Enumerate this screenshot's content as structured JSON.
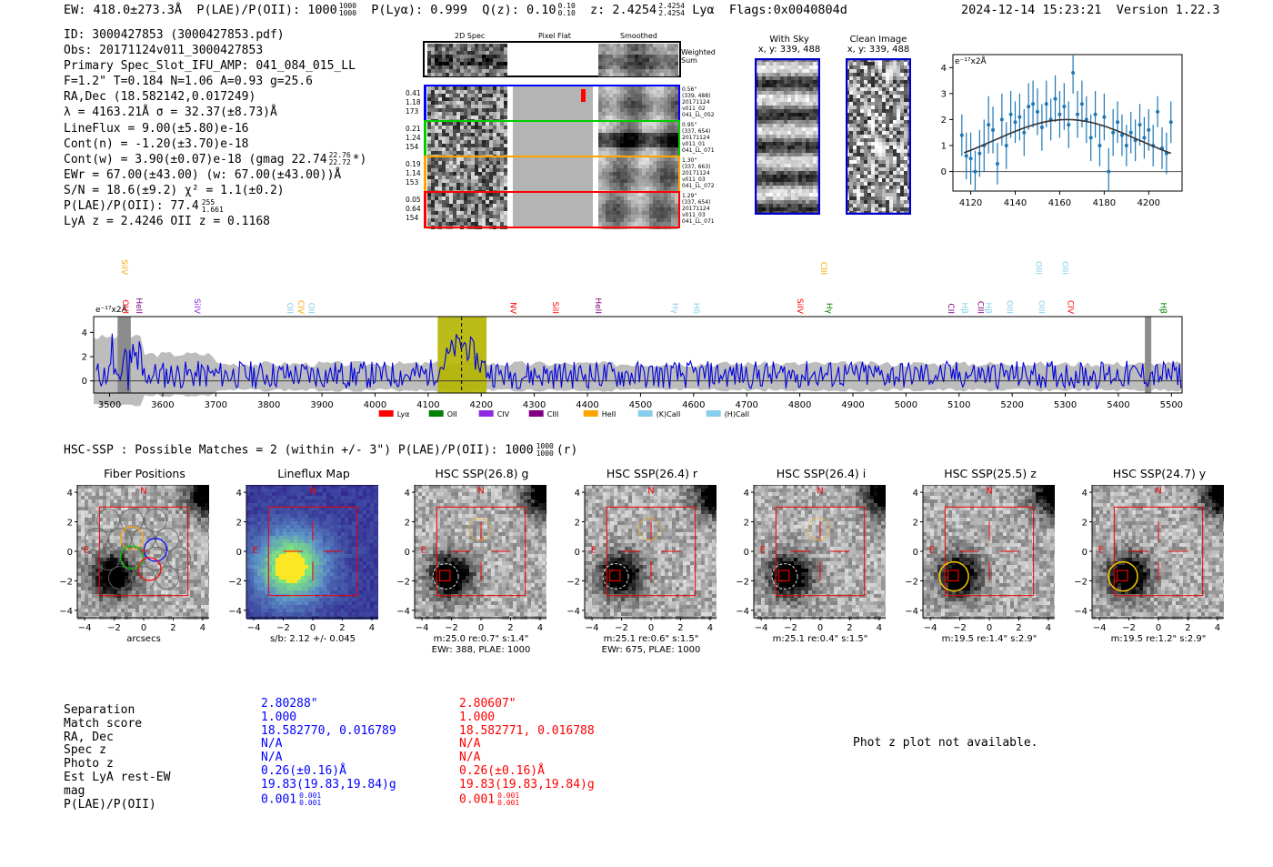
{
  "header": {
    "ew": "EW: 418.0±273.3Å",
    "plae": "P(LAE)/P(OII): 1000",
    "plae_hi": "1000",
    "plae_lo": "1000",
    "plya": "P(Lyα): 0.999",
    "qz": "Q(z): 0.10",
    "qz_hi": "0.10",
    "qz_lo": "0.10",
    "z": "z: 2.4254",
    "z_hi": "2.4254",
    "z_lo": "2.4254",
    "line": "Lyα",
    "flags": "Flags:0x0040804d",
    "timestamp": "2024-12-14 15:23:21",
    "version": "Version 1.22.3"
  },
  "info": {
    "id": "ID: 3000427853 (3000427853.pdf)",
    "obs": "Obs: 20171124v011_3000427853",
    "primary": "Primary Spec_Slot_IFU_AMP: 041_084_015_LL",
    "params": "F=1.2\"  T=0.184  N=1.06  A=0.93  g=25.6",
    "radec": "RA,Dec (18.582142,0.017249)",
    "lambda": "λ = 4163.21Å  σ = 32.37(±8.73)Å",
    "lineflux": "LineFlux = 9.00(±5.80)e-16",
    "contn": "Cont(n) = -1.20(±3.70)e-18",
    "contw": "Cont(w) = 3.90(±0.07)e-18 (gmag 22.74",
    "contw_hi": "22.76",
    "contw_lo": "22.72",
    "contw_end": "*)",
    "ewr": "EWr = 67.00(±43.00) (w: 67.00(±43.00))Å",
    "sn": "S/N = 18.6(±9.2)  χ² = 1.1(±0.2)",
    "plae": "P(LAE)/P(OII): 77.4",
    "plae_hi": "255",
    "plae_lo": "1.661",
    "lyaz": "LyA z = 2.4246  OII z = 0.1168"
  },
  "cutouts": {
    "headers": [
      "2D Spec",
      "Pixel Flat",
      "Smoothed"
    ],
    "weighted": "Weighted Sum",
    "rows": [
      {
        "left": [
          "0.41",
          "1.18",
          "173"
        ],
        "right": [
          "0.56\"",
          "(339, 488)",
          "20171124",
          "v011_02",
          "041_LL_052"
        ],
        "color": "#0000ff"
      },
      {
        "left": [
          "0.21",
          "1.24",
          "154"
        ],
        "right": [
          "0.95\"",
          "(337, 654)",
          "20171124",
          "v011_01",
          "041_LL_071"
        ],
        "color": "#00cc00"
      },
      {
        "left": [
          "0.19",
          "1.14",
          "153"
        ],
        "right": [
          "1.30\"",
          "(337, 663)",
          "20171124",
          "v011_03",
          "041_LL_072"
        ],
        "color": "#ffa500"
      },
      {
        "left": [
          "0.05",
          "0.64",
          "154"
        ],
        "right": [
          "1.29\"",
          "(337, 654)",
          "20171124",
          "v011_03",
          "041_LL_071"
        ],
        "color": "#ff0000"
      }
    ]
  },
  "skypanels": {
    "with_sky": "With Sky",
    "clean": "Clean Image",
    "coords": "x, y: 339, 488"
  },
  "chart_data": [
    {
      "type": "scatter",
      "title": "",
      "units_label": "e⁻¹⁷x2Å",
      "xlim": [
        4112,
        4215
      ],
      "ylim": [
        -0.75,
        4.5
      ],
      "xticks": [
        4120,
        4140,
        4160,
        4180,
        4200
      ],
      "yticks": [
        0,
        1,
        2,
        3,
        4
      ],
      "x": [
        4116,
        4118,
        4120,
        4122,
        4124,
        4126,
        4128,
        4130,
        4132,
        4134,
        4136,
        4138,
        4140,
        4142,
        4144,
        4146,
        4148,
        4150,
        4152,
        4154,
        4156,
        4158,
        4160,
        4162,
        4164,
        4166,
        4168,
        4170,
        4172,
        4174,
        4176,
        4178,
        4180,
        4182,
        4184,
        4186,
        4188,
        4190,
        4192,
        4194,
        4196,
        4198,
        4200,
        4202,
        4204,
        4206,
        4208,
        4210
      ],
      "y": [
        1.4,
        0.6,
        0.5,
        0.0,
        0.7,
        1.0,
        1.8,
        1.6,
        0.3,
        2.0,
        1.0,
        2.2,
        1.9,
        2.1,
        1.5,
        2.5,
        2.6,
        2.3,
        1.7,
        2.6,
        2.0,
        2.8,
        2.2,
        2.5,
        1.8,
        3.8,
        2.2,
        2.6,
        2.0,
        1.3,
        2.2,
        1.0,
        2.1,
        0.0,
        1.5,
        1.9,
        1.4,
        1.0,
        1.5,
        1.2,
        1.8,
        1.3,
        1.6,
        1.0,
        2.3,
        0.9,
        0.7,
        1.9
      ],
      "err": [
        0.8,
        0.9,
        1.0,
        0.8,
        0.9,
        1.0,
        1.1,
        0.9,
        0.8,
        1.0,
        0.9,
        0.9,
        0.8,
        0.9,
        0.9,
        0.9,
        0.9,
        0.9,
        0.9,
        0.9,
        0.8,
        0.9,
        0.9,
        0.9,
        0.9,
        0.8,
        0.9,
        0.9,
        0.9,
        0.9,
        0.9,
        0.8,
        0.9,
        0.9,
        0.9,
        0.8,
        0.8,
        0.8,
        0.8,
        0.8,
        0.8,
        0.8,
        0.8,
        0.8,
        0.6,
        0.8,
        0.8,
        0.8
      ],
      "fit": {
        "amp": 2.0,
        "center": 4163.2,
        "sigma": 32.37,
        "continuum": 0.0
      }
    },
    {
      "type": "line",
      "title": "",
      "units_label": "e⁻¹⁷x2Å",
      "xlim": [
        3470,
        5520
      ],
      "ylim": [
        -1,
        5.3
      ],
      "xticks": [
        3500,
        3600,
        3700,
        3800,
        3900,
        4000,
        4100,
        4200,
        4300,
        4400,
        4500,
        4600,
        4700,
        4800,
        4900,
        5000,
        5100,
        5200,
        5300,
        5400,
        5500
      ],
      "yticks": [
        0,
        2,
        4
      ],
      "highlight": [
        4118,
        4210
      ],
      "marker": 4163,
      "lines": [
        {
          "label": "SiIV",
          "wave": 3518,
          "color": "#ffa500",
          "high": true
        },
        {
          "label": "OVI",
          "wave": 3520,
          "color": "#ff0000",
          "high": false
        },
        {
          "label": "HeII",
          "wave": 3545,
          "color": "#800080",
          "high": false
        },
        {
          "label": "SiIV",
          "wave": 3655,
          "color": "#8a2be2",
          "high": false
        },
        {
          "label": "OII",
          "wave": 3830,
          "color": "#87ceeb",
          "high": false
        },
        {
          "label": "CIV",
          "wave": 3850,
          "color": "#ffa500",
          "high": false
        },
        {
          "label": "OII",
          "wave": 3870,
          "color": "#87ceeb",
          "high": false
        },
        {
          "label": "NV",
          "wave": 4250,
          "color": "#ff0000",
          "high": false
        },
        {
          "label": "SiII",
          "wave": 4330,
          "color": "#ff0000",
          "high": false
        },
        {
          "label": "HeII",
          "wave": 4410,
          "color": "#800080",
          "high": false
        },
        {
          "label": "Hγ",
          "wave": 4555,
          "color": "#87ceeb",
          "high": false
        },
        {
          "label": "Hδ",
          "wave": 4595,
          "color": "#87ceeb",
          "high": false
        },
        {
          "label": "SiIV",
          "wave": 4790,
          "color": "#ff0000",
          "high": false
        },
        {
          "label": "CIII",
          "wave": 4835,
          "color": "#ffa500",
          "high": true
        },
        {
          "label": "Hγ",
          "wave": 4845,
          "color": "#008000",
          "high": false
        },
        {
          "label": "CII",
          "wave": 5075,
          "color": "#800080",
          "high": false
        },
        {
          "label": "Hβ",
          "wave": 5100,
          "color": "#87ceeb",
          "high": false
        },
        {
          "label": "CIII",
          "wave": 5130,
          "color": "#800080",
          "high": false
        },
        {
          "label": "Hβ",
          "wave": 5145,
          "color": "#87ceeb",
          "high": false
        },
        {
          "label": "OIII",
          "wave": 5185,
          "color": "#87ceeb",
          "high": false
        },
        {
          "label": "OIII",
          "wave": 5240,
          "color": "#87ceeb",
          "high": true
        },
        {
          "label": "OIII",
          "wave": 5245,
          "color": "#87ceeb",
          "high": false
        },
        {
          "label": "OIII",
          "wave": 5290,
          "color": "#87ceeb",
          "high": true
        },
        {
          "label": "CIV",
          "wave": 5300,
          "color": "#ff0000",
          "high": false
        },
        {
          "label": "Hβ",
          "wave": 5475,
          "color": "#008000",
          "high": false
        }
      ],
      "legend": [
        {
          "label": "Lyα",
          "color": "#ff0000"
        },
        {
          "label": "OII",
          "color": "#008000"
        },
        {
          "label": "CIV",
          "color": "#8a2be2"
        },
        {
          "label": "CIII",
          "color": "#800080"
        },
        {
          "label": "HeII",
          "color": "#ffa500"
        },
        {
          "label": "(K)CaII",
          "color": "#87ceeb"
        },
        {
          "label": "(H)CaII",
          "color": "#87ceeb"
        }
      ]
    }
  ],
  "hsc": {
    "summary": "HSC-SSP : Possible Matches = 2 (within +/- 3\")  P(LAE)/P(OII): 1000",
    "summary_hi": "1000",
    "summary_lo": "1000",
    "summary_end": "(r)",
    "panels": [
      {
        "title": "Fiber Positions",
        "cap1": "arcsecs",
        "cap2": ""
      },
      {
        "title": "Lineflux Map",
        "cap1": "s/b: 2.12 +/- 0.045",
        "cap2": ""
      },
      {
        "title": "HSC SSP(26.8) g",
        "cap1": "m:25.0  re:0.7\"  s:1.4\"",
        "cap2": "EWr: 388, PLAE: 1000"
      },
      {
        "title": "HSC SSP(26.4) r",
        "cap1": "m:25.1  re:0.6\"  s:1.5\"",
        "cap2": "EWr: 675, PLAE: 1000"
      },
      {
        "title": "HSC SSP(26.4) i",
        "cap1": "m:25.1  re:0.4\"  s:1.5\"",
        "cap2": ""
      },
      {
        "title": "HSC SSP(25.5) z",
        "cap1": "m:19.5  re:1.4\"  s:2.9\"",
        "cap2": ""
      },
      {
        "title": "HSC SSP(24.7) y",
        "cap1": "m:19.5  re:1.2\"  s:2.9\"",
        "cap2": ""
      }
    ],
    "axis_ticks": [
      "4",
      "2",
      "0",
      "−2",
      "−4"
    ],
    "x_ticks": [
      "−4",
      "−2",
      "0",
      "2",
      "4"
    ],
    "compass_n": "N",
    "compass_e": "E"
  },
  "matches": {
    "labels": [
      "Separation",
      "Match score",
      "RA, Dec",
      "Spec z",
      "Photo z",
      "Est LyA rest-EW",
      "mag",
      "P(LAE)/P(OII)"
    ],
    "blue": [
      "2.80288\"",
      "1.000",
      "18.582770, 0.016789",
      "N/A",
      "N/A",
      "0.26(±0.16)Å",
      "19.83(19.83,19.84)g",
      "0.001"
    ],
    "blue_sup": "0.001",
    "blue_sub": "0.001",
    "red": [
      "2.80607\"",
      "1.000",
      "18.582771, 0.016788",
      "N/A",
      "N/A",
      "0.26(±0.16)Å",
      "19.83(19.83,19.84)g",
      "0.001"
    ],
    "red_sup": "0.001",
    "red_sub": "0.001",
    "photz_note": "Phot z plot not available."
  }
}
